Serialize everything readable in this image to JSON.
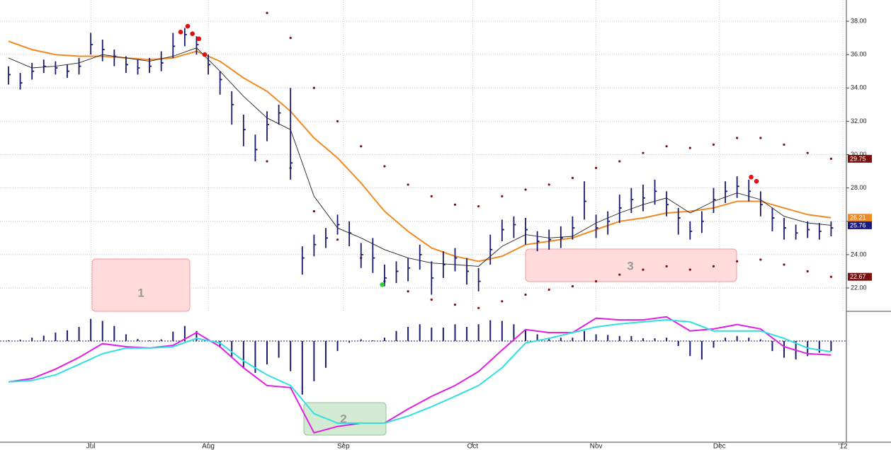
{
  "chart_data": [
    {
      "type": "ohlc",
      "xlim": [
        0,
        142
      ],
      "ylim": [
        20.6,
        38.85
      ],
      "grid": true,
      "yticks": [
        {
          "value": 22,
          "label": "22.00"
        },
        {
          "value": 24,
          "label": "24.00"
        },
        {
          "value": 26,
          "label": "26.00"
        },
        {
          "value": 28,
          "label": "28.00"
        },
        {
          "value": 30,
          "label": "30.00"
        },
        {
          "value": 32,
          "label": "32.00"
        },
        {
          "value": 34,
          "label": "34.00"
        },
        {
          "value": 36,
          "label": "36.00"
        },
        {
          "value": 38,
          "label": "38.00"
        }
      ],
      "bars": {
        "color": "#1a1a6e",
        "x": [
          0,
          2,
          4,
          6,
          8,
          10,
          12,
          14,
          16,
          18,
          20,
          22,
          24,
          26,
          28,
          30,
          32,
          34,
          36,
          38,
          40,
          42,
          44,
          46,
          48,
          50,
          52,
          54,
          56,
          58,
          60,
          62,
          64,
          66,
          68,
          70,
          72,
          74,
          76,
          78,
          80,
          82,
          84,
          86,
          88,
          90,
          92,
          94,
          96,
          98,
          100,
          102,
          104,
          106,
          108,
          110,
          112,
          114,
          116,
          118,
          120,
          122,
          124,
          126,
          128,
          130,
          132,
          134,
          136,
          138,
          140
        ],
        "high": [
          35.3,
          34.9,
          35.5,
          35.7,
          35.6,
          35.4,
          35.8,
          37.3,
          36.9,
          36.3,
          35.9,
          35.7,
          35.8,
          36.2,
          37.3,
          37.6,
          37.1,
          36.0,
          35.0,
          33.8,
          32.4,
          31.2,
          32.6,
          33.0,
          34.0,
          24.5,
          25.2,
          25.6,
          26.4,
          26.0,
          24.7,
          25.0,
          23.4,
          23.6,
          23.8,
          24.6,
          23.6,
          24.2,
          24.4,
          23.8,
          23.2,
          25.2,
          26.1,
          26.3,
          26.2,
          25.4,
          25.5,
          25.7,
          26.3,
          28.4,
          26.4,
          26.6,
          27.6,
          28.0,
          28.2,
          28.5,
          27.8,
          26.8,
          26.0,
          26.6,
          28.0,
          28.4,
          28.7,
          28.5,
          27.8,
          26.8,
          26.2,
          25.8,
          26.0,
          25.9,
          26.0
        ],
        "low": [
          34.2,
          33.9,
          34.5,
          34.9,
          34.8,
          34.6,
          34.8,
          36.0,
          35.6,
          35.3,
          34.9,
          34.8,
          34.9,
          35.0,
          35.8,
          36.5,
          36.0,
          34.8,
          33.6,
          31.8,
          30.5,
          29.6,
          30.8,
          31.8,
          28.5,
          22.8,
          23.9,
          24.4,
          25.2,
          24.5,
          23.2,
          22.9,
          22.1,
          22.3,
          22.4,
          23.1,
          21.6,
          22.6,
          23.0,
          22.2,
          21.8,
          23.4,
          24.8,
          25.0,
          24.6,
          24.2,
          24.3,
          24.4,
          24.9,
          26.1,
          25.0,
          25.2,
          25.9,
          26.5,
          26.6,
          27.0,
          26.3,
          25.2,
          24.9,
          25.3,
          26.5,
          27.1,
          27.4,
          27.2,
          26.3,
          25.4,
          24.9,
          24.9,
          25.0,
          24.9,
          25.1
        ],
        "close": [
          34.8,
          34.3,
          35.0,
          35.3,
          35.2,
          35.0,
          35.3,
          36.6,
          36.3,
          35.9,
          35.4,
          35.2,
          35.3,
          35.5,
          36.5,
          37.2,
          36.6,
          35.4,
          34.5,
          33.0,
          31.5,
          30.3,
          31.8,
          32.5,
          29.5,
          23.8,
          24.6,
          25.0,
          25.8,
          25.3,
          24.0,
          23.8,
          22.6,
          23.0,
          23.2,
          24.0,
          22.6,
          23.4,
          23.8,
          23.0,
          22.4,
          24.3,
          25.5,
          25.8,
          25.5,
          24.8,
          24.9,
          25.0,
          25.6,
          27.2,
          25.6,
          26.0,
          26.8,
          27.3,
          27.4,
          27.8,
          27.0,
          26.2,
          25.4,
          26.0,
          27.3,
          27.8,
          28.1,
          27.8,
          27.0,
          26.2,
          25.6,
          25.3,
          25.5,
          25.4,
          25.6
        ]
      },
      "series": [
        {
          "style": "line",
          "color": "#f08a24",
          "width": 2,
          "label_color": "#f08a24",
          "last_value_label": true,
          "x": [
            0,
            4,
            8,
            12,
            16,
            20,
            24,
            28,
            32,
            36,
            40,
            44,
            48,
            52,
            56,
            60,
            64,
            68,
            72,
            76,
            80,
            84,
            88,
            92,
            96,
            100,
            104,
            108,
            112,
            116,
            120,
            124,
            128,
            132,
            136,
            140
          ],
          "values": [
            36.8,
            36.3,
            36.0,
            35.9,
            35.9,
            35.8,
            35.7,
            35.8,
            36.2,
            35.6,
            34.6,
            33.8,
            32.6,
            31.0,
            29.8,
            28.3,
            26.6,
            25.4,
            24.4,
            23.9,
            23.6,
            23.9,
            24.6,
            24.8,
            25.0,
            25.5,
            26.0,
            26.2,
            26.5,
            26.6,
            26.8,
            27.2,
            27.2,
            26.8,
            26.4,
            26.21
          ]
        },
        {
          "style": "line",
          "color": "#222222",
          "width": 0.9,
          "label_color": "#1a1a80",
          "last_value_label": true,
          "x": [
            0,
            4,
            8,
            12,
            16,
            20,
            24,
            28,
            32,
            36,
            40,
            44,
            48,
            52,
            56,
            60,
            64,
            68,
            72,
            76,
            80,
            84,
            88,
            92,
            96,
            100,
            104,
            108,
            112,
            116,
            120,
            124,
            128,
            132,
            136,
            140
          ],
          "values": [
            35.8,
            35.2,
            35.3,
            35.5,
            36.0,
            35.8,
            35.6,
            35.9,
            36.4,
            35.0,
            33.5,
            32.2,
            31.5,
            27.5,
            25.6,
            25.0,
            24.3,
            23.8,
            23.5,
            23.4,
            23.3,
            24.5,
            25.2,
            25.0,
            25.1,
            25.9,
            26.5,
            27.0,
            27.4,
            26.5,
            27.2,
            27.7,
            27.3,
            26.3,
            25.9,
            25.76
          ]
        },
        {
          "style": "dots",
          "color": "#7a1010",
          "label_color": "#7a1010",
          "last_value_label": true,
          "x": [
            0,
            4,
            8,
            12,
            16,
            20,
            24,
            28,
            32,
            36,
            40,
            44,
            48,
            52,
            56,
            60,
            64,
            68,
            72,
            76,
            80,
            84,
            88,
            92,
            96,
            100,
            104,
            108,
            112,
            116,
            120,
            124,
            128,
            132,
            136,
            140
          ],
          "values": [
            null,
            null,
            null,
            null,
            null,
            null,
            null,
            null,
            null,
            null,
            null,
            38.5,
            37.0,
            34.0,
            32.0,
            30.5,
            29.3,
            28.2,
            27.5,
            27.0,
            26.9,
            27.5,
            27.9,
            28.2,
            28.6,
            29.2,
            29.6,
            30.1,
            30.5,
            30.4,
            30.6,
            31.0,
            31.0,
            30.6,
            30.1,
            29.75
          ]
        },
        {
          "style": "dots",
          "color": "#7a1010",
          "label_color": "#7a1010",
          "last_value_label": true,
          "x": [
            0,
            4,
            8,
            12,
            16,
            20,
            24,
            28,
            32,
            36,
            40,
            44,
            48,
            52,
            56,
            60,
            64,
            68,
            72,
            76,
            80,
            84,
            88,
            92,
            96,
            100,
            104,
            108,
            112,
            116,
            120,
            124,
            128,
            132,
            136,
            140
          ],
          "values": [
            null,
            null,
            null,
            null,
            null,
            null,
            null,
            null,
            null,
            null,
            null,
            29.6,
            29.2,
            26.6,
            24.9,
            23.8,
            22.4,
            21.8,
            21.3,
            21.0,
            20.8,
            21.2,
            21.6,
            21.9,
            22.1,
            22.4,
            22.8,
            23.1,
            23.3,
            23.1,
            23.3,
            23.6,
            23.7,
            23.4,
            23.0,
            22.67
          ]
        }
      ],
      "signals": [
        {
          "color": "#e01010",
          "x": [
            29.3,
            30.5,
            31.3,
            32.4,
            33.4,
            126.4,
            127.3
          ],
          "values": [
            37.35,
            37.7,
            37.25,
            36.95,
            36.0,
            28.65,
            28.4
          ]
        },
        {
          "color": "#30d030",
          "x": [
            63.6
          ],
          "values": [
            22.2
          ]
        }
      ],
      "annotations": [
        {
          "text": "1"
        },
        {
          "text": "3"
        }
      ]
    },
    {
      "type": "macd",
      "xlim": [
        0,
        142
      ],
      "ylim": [
        -3.02,
        0.78
      ],
      "xticks": [
        {
          "value": 14,
          "label": "Jul"
        },
        {
          "value": 34,
          "label": "Aug"
        },
        {
          "value": 57,
          "label": "Sep"
        },
        {
          "value": 79,
          "label": "Oct"
        },
        {
          "value": 100,
          "label": "Nov"
        },
        {
          "value": 121,
          "label": "Dec"
        },
        {
          "value": 142,
          "label": "'12"
        }
      ],
      "series": [
        {
          "color": "#e020e0",
          "x": [
            0,
            4,
            8,
            12,
            16,
            20,
            24,
            28,
            32,
            36,
            40,
            44,
            48,
            52,
            56,
            60,
            64,
            68,
            72,
            76,
            80,
            84,
            88,
            92,
            96,
            100,
            104,
            108,
            112,
            116,
            120,
            124,
            128,
            132,
            136,
            140
          ],
          "values": [
            -1.22,
            -1.12,
            -0.84,
            -0.49,
            -0.08,
            -0.17,
            -0.21,
            -0.13,
            0.25,
            -0.17,
            -0.8,
            -1.33,
            -1.39,
            -2.74,
            -2.55,
            -2.45,
            -2.45,
            -2.03,
            -1.65,
            -1.33,
            -0.91,
            -0.27,
            0.34,
            0.25,
            0.25,
            0.68,
            0.63,
            0.63,
            0.72,
            0.3,
            0.36,
            0.49,
            0.36,
            -0.17,
            -0.38,
            -0.42
          ]
        },
        {
          "color": "#30e0e0",
          "x": [
            0,
            4,
            8,
            12,
            16,
            20,
            24,
            28,
            32,
            36,
            40,
            44,
            48,
            52,
            56,
            60,
            64,
            68,
            72,
            76,
            80,
            84,
            88,
            92,
            96,
            100,
            104,
            108,
            112,
            116,
            120,
            124,
            128,
            132,
            136,
            140
          ],
          "values": [
            -1.22,
            -1.18,
            -1.01,
            -0.7,
            -0.38,
            -0.21,
            -0.21,
            -0.17,
            0.08,
            -0.06,
            -0.59,
            -1.01,
            -1.33,
            -2.17,
            -2.45,
            -2.45,
            -2.45,
            -2.24,
            -1.96,
            -1.65,
            -1.33,
            -0.8,
            -0.06,
            0.08,
            0.25,
            0.42,
            0.51,
            0.57,
            0.63,
            0.57,
            0.3,
            0.3,
            0.3,
            0.08,
            -0.21,
            -0.32
          ]
        }
      ],
      "histogram": {
        "color": "#1a1a6e",
        "x": [
          0,
          2,
          4,
          6,
          8,
          10,
          12,
          14,
          16,
          18,
          20,
          22,
          24,
          26,
          28,
          30,
          32,
          34,
          36,
          38,
          40,
          42,
          44,
          46,
          48,
          50,
          52,
          54,
          56,
          58,
          60,
          62,
          64,
          66,
          68,
          70,
          72,
          74,
          76,
          78,
          80,
          82,
          84,
          86,
          88,
          90,
          92,
          94,
          96,
          98,
          100,
          102,
          104,
          106,
          108,
          110,
          112,
          114,
          116,
          118,
          120,
          122,
          124,
          126,
          128,
          130,
          132,
          134,
          136,
          138,
          140
        ],
        "values": [
          0.02,
          0.04,
          0.1,
          0.16,
          0.25,
          0.32,
          0.42,
          0.66,
          0.6,
          0.45,
          0.2,
          0.06,
          0.02,
          0.05,
          0.28,
          0.45,
          0.3,
          0.0,
          -0.2,
          -0.5,
          -0.8,
          -0.95,
          -0.7,
          -0.5,
          -0.9,
          -1.6,
          -1.2,
          -0.8,
          -0.3,
          -0.05,
          0.05,
          0.02,
          0.1,
          0.3,
          0.42,
          0.5,
          0.4,
          0.4,
          0.5,
          0.42,
          0.5,
          0.62,
          0.6,
          0.5,
          0.35,
          0.2,
          0.1,
          0.1,
          0.1,
          0.3,
          0.2,
          0.18,
          0.15,
          0.15,
          0.08,
          0.08,
          0.1,
          -0.15,
          -0.45,
          -0.55,
          -0.2,
          0.1,
          0.15,
          0.1,
          0.05,
          -0.3,
          -0.5,
          -0.55,
          -0.45,
          -0.35,
          -0.3
        ]
      },
      "annotations": [
        {
          "text": "2"
        }
      ]
    }
  ]
}
